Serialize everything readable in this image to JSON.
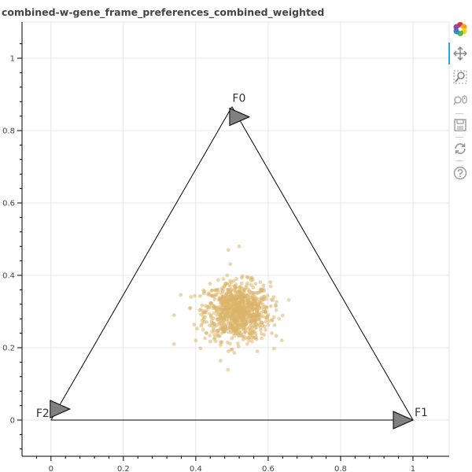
{
  "chart_data": {
    "type": "scatter",
    "title": "combined-w-gene_frame_preferences_combined_weighted",
    "xlim": [
      -0.08,
      1.1
    ],
    "ylim": [
      -0.1,
      1.1
    ],
    "x_ticks": [
      0,
      0.2,
      0.4,
      0.6,
      0.8,
      1
    ],
    "y_ticks": [
      0,
      0.2,
      0.4,
      0.6,
      0.8,
      1
    ],
    "x_tick_labels": [
      "0",
      "0.2",
      "0.4",
      "0.6",
      "0.8",
      "1"
    ],
    "y_tick_labels": [
      "0",
      "0.2",
      "0.4",
      "0.6",
      "0.8",
      "1"
    ],
    "grid": true,
    "triangle": [
      {
        "label": "F0",
        "x": 0.5,
        "y": 0.866
      },
      {
        "label": "F1",
        "x": 1.0,
        "y": 0.0
      },
      {
        "label": "F2",
        "x": 0.0,
        "y": 0.0
      }
    ],
    "point_color": "#dbb46a",
    "cluster": {
      "center_x": 0.515,
      "center_y": 0.3,
      "spread_x": 0.045,
      "spread_y": 0.04,
      "count": 900
    },
    "outliers": [
      {
        "x": 0.34,
        "y": 0.21
      },
      {
        "x": 0.34,
        "y": 0.29
      },
      {
        "x": 0.52,
        "y": 0.48
      },
      {
        "x": 0.49,
        "y": 0.47
      },
      {
        "x": 0.63,
        "y": 0.28
      },
      {
        "x": 0.61,
        "y": 0.24
      },
      {
        "x": 0.49,
        "y": 0.19
      },
      {
        "x": 0.57,
        "y": 0.19
      },
      {
        "x": 0.42,
        "y": 0.25
      },
      {
        "x": 0.4,
        "y": 0.22
      }
    ]
  },
  "toolbar": {
    "tools": [
      {
        "name": "bokeh-logo-icon"
      },
      {
        "name": "pan-tool-icon"
      },
      {
        "name": "box-zoom-tool-icon"
      },
      {
        "name": "wheel-zoom-tool-icon"
      },
      {
        "name": "save-tool-icon"
      },
      {
        "name": "reset-tool-icon"
      },
      {
        "name": "help-tool-icon"
      }
    ]
  }
}
